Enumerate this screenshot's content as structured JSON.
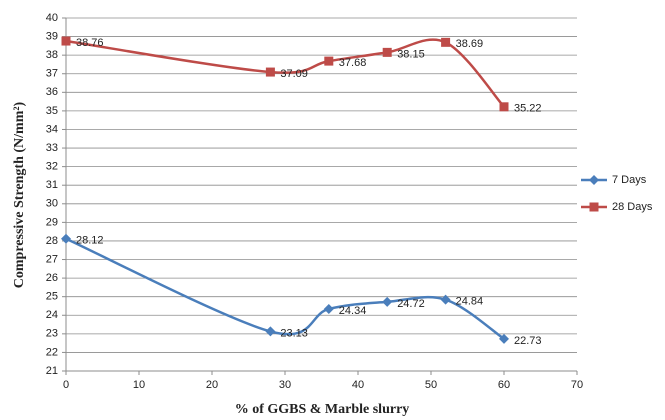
{
  "chart_data": {
    "type": "line",
    "xlabel": "% of GGBS & Marble slurry",
    "ylabel": "Compressive Strength (N/mm²)",
    "x": [
      0,
      28,
      36,
      44,
      52,
      60
    ],
    "series": [
      {
        "name": "7 Days",
        "color": "#4a7ebb",
        "marker": "diamond",
        "values": [
          28.12,
          23.13,
          24.34,
          24.72,
          24.84,
          22.73
        ]
      },
      {
        "name": "28 Days",
        "color": "#be4b48",
        "marker": "square",
        "values": [
          38.76,
          37.09,
          37.68,
          38.15,
          38.69,
          35.22
        ]
      }
    ],
    "xlim": [
      0,
      70
    ],
    "xticks": [
      0,
      10,
      20,
      30,
      40,
      50,
      60,
      70
    ],
    "ylim": [
      21,
      40
    ],
    "yticks": [
      21,
      22,
      23,
      24,
      25,
      26,
      27,
      28,
      29,
      30,
      31,
      32,
      33,
      34,
      35,
      36,
      37,
      38,
      39,
      40
    ],
    "grid": true,
    "legend": "right",
    "smooth": true
  }
}
